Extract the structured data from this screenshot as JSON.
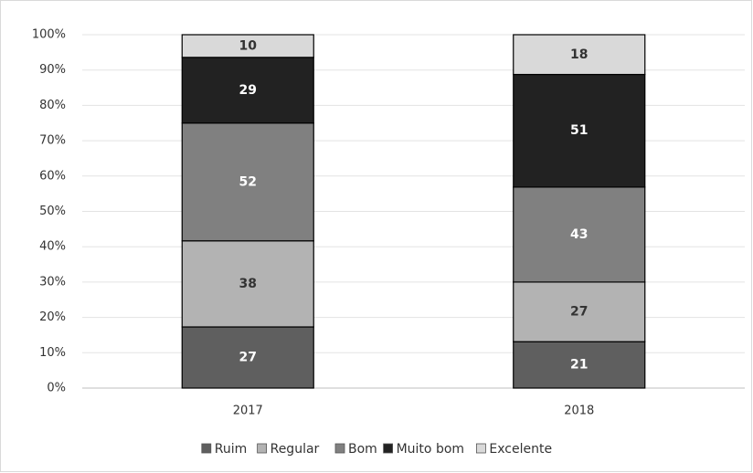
{
  "chart_data": {
    "type": "bar",
    "stacking": "percent",
    "categories": [
      "2017",
      "2018"
    ],
    "series": [
      {
        "name": "Ruim",
        "color": "#5f5f5f",
        "values": [
          27,
          21
        ]
      },
      {
        "name": "Regular",
        "color": "#b3b3b3",
        "values": [
          38,
          27
        ]
      },
      {
        "name": "Bom",
        "color": "#808080",
        "values": [
          52,
          43
        ]
      },
      {
        "name": "Muito bom",
        "color": "#222222",
        "values": [
          29,
          51
        ]
      },
      {
        "name": "Excelente",
        "color": "#d9d9d9",
        "values": [
          10,
          18
        ]
      }
    ],
    "ylim": [
      0,
      100
    ],
    "yticks": [
      {
        "value": 0,
        "label": "0%"
      },
      {
        "value": 10,
        "label": "10%"
      },
      {
        "value": 20,
        "label": "20%"
      },
      {
        "value": 30,
        "label": "30%"
      },
      {
        "value": 40,
        "label": "40%"
      },
      {
        "value": 50,
        "label": "50%"
      },
      {
        "value": 60,
        "label": "60%"
      },
      {
        "value": 70,
        "label": "70%"
      },
      {
        "value": 80,
        "label": "80%"
      },
      {
        "value": 90,
        "label": "90%"
      },
      {
        "value": 100,
        "label": "100%"
      }
    ],
    "grid": true,
    "legend": "bottom"
  }
}
